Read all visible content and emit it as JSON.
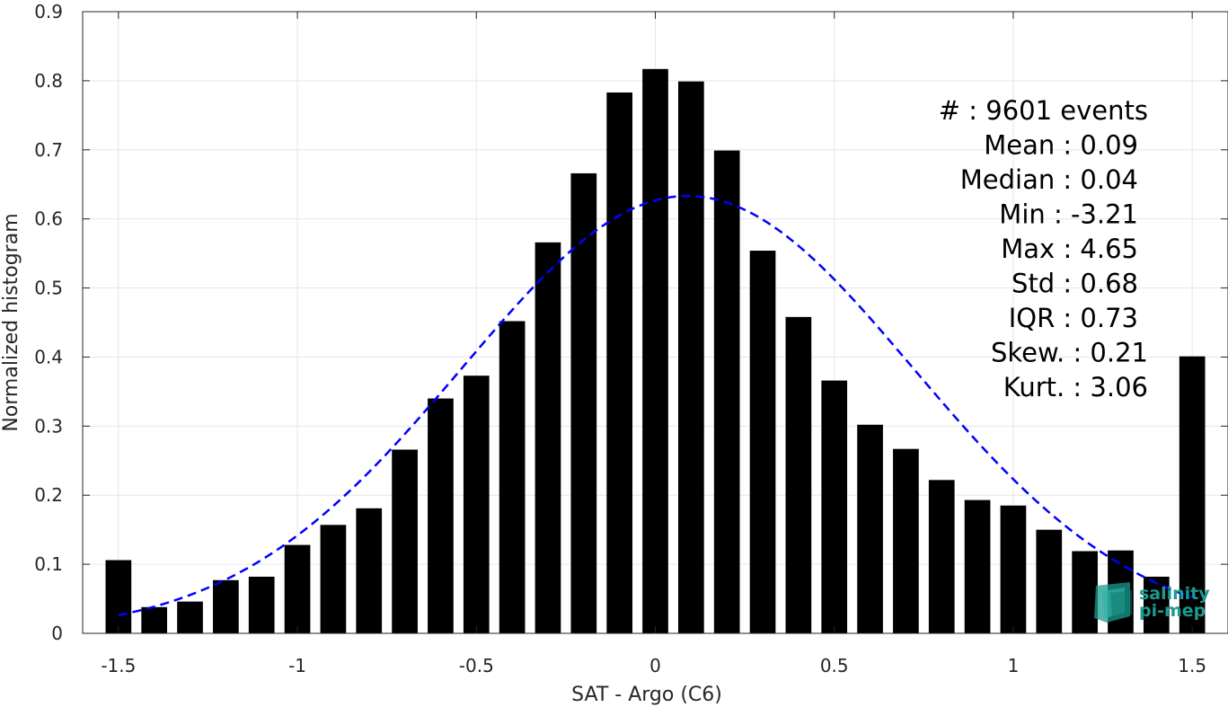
{
  "chart_data": {
    "type": "bar",
    "xlabel": "SAT - Argo (C6)",
    "ylabel": "Normalized histogram",
    "xlim": [
      -1.6,
      1.6
    ],
    "ylim": [
      0,
      0.9
    ],
    "xticks": [
      -1.5,
      -1,
      -0.5,
      0,
      0.5,
      1,
      1.5
    ],
    "xtick_labels": [
      "-1.5",
      "-1",
      "-0.5",
      "0",
      "0.5",
      "1",
      "1.5"
    ],
    "yticks": [
      0,
      0.1,
      0.2,
      0.3,
      0.4,
      0.5,
      0.6,
      0.7,
      0.8,
      0.9
    ],
    "ytick_labels": [
      "0",
      "0.1",
      "0.2",
      "0.3",
      "0.4",
      "0.5",
      "0.6",
      "0.7",
      "0.8",
      "0.9"
    ],
    "grid": true,
    "x": [
      -1.5,
      -1.4,
      -1.3,
      -1.2,
      -1.1,
      -1.0,
      -0.9,
      -0.8,
      -0.7,
      -0.6,
      -0.5,
      -0.4,
      -0.3,
      -0.2,
      -0.1,
      0.0,
      0.1,
      0.2,
      0.3,
      0.4,
      0.5,
      0.6,
      0.7,
      0.8,
      0.9,
      1.0,
      1.1,
      1.2,
      1.3,
      1.4,
      1.5
    ],
    "values": [
      0.106,
      0.038,
      0.046,
      0.077,
      0.082,
      0.128,
      0.157,
      0.181,
      0.266,
      0.34,
      0.373,
      0.452,
      0.566,
      0.666,
      0.783,
      0.817,
      0.799,
      0.699,
      0.554,
      0.458,
      0.366,
      0.302,
      0.267,
      0.222,
      0.193,
      0.185,
      0.15,
      0.119,
      0.12,
      0.082,
      0.401
    ],
    "bar_color": "#000000",
    "fit": {
      "type": "normal",
      "mean": 0.09,
      "std": 0.63,
      "x_range": [
        -1.5,
        1.5
      ],
      "color": "#0000ff",
      "style": "dashed"
    },
    "stats": [
      {
        "label": "#  : 9601 events",
        "indent": 0
      },
      {
        "label": "Mean : 0.09",
        "indent": 1
      },
      {
        "label": "Median : 0.04",
        "indent": 1
      },
      {
        "label": "Min : -3.21",
        "indent": 1
      },
      {
        "label": "Max : 4.65",
        "indent": 1
      },
      {
        "label": "Std : 0.68",
        "indent": 1
      },
      {
        "label": "IQR : 0.73",
        "indent": 1
      },
      {
        "label": "Skew. : 0.21",
        "indent": 0
      },
      {
        "label": "Kurt. : 3.06",
        "indent": 0
      }
    ]
  },
  "logo": {
    "line1": "salinity",
    "line2": "pi-mep",
    "color": "#1a9b8f"
  }
}
